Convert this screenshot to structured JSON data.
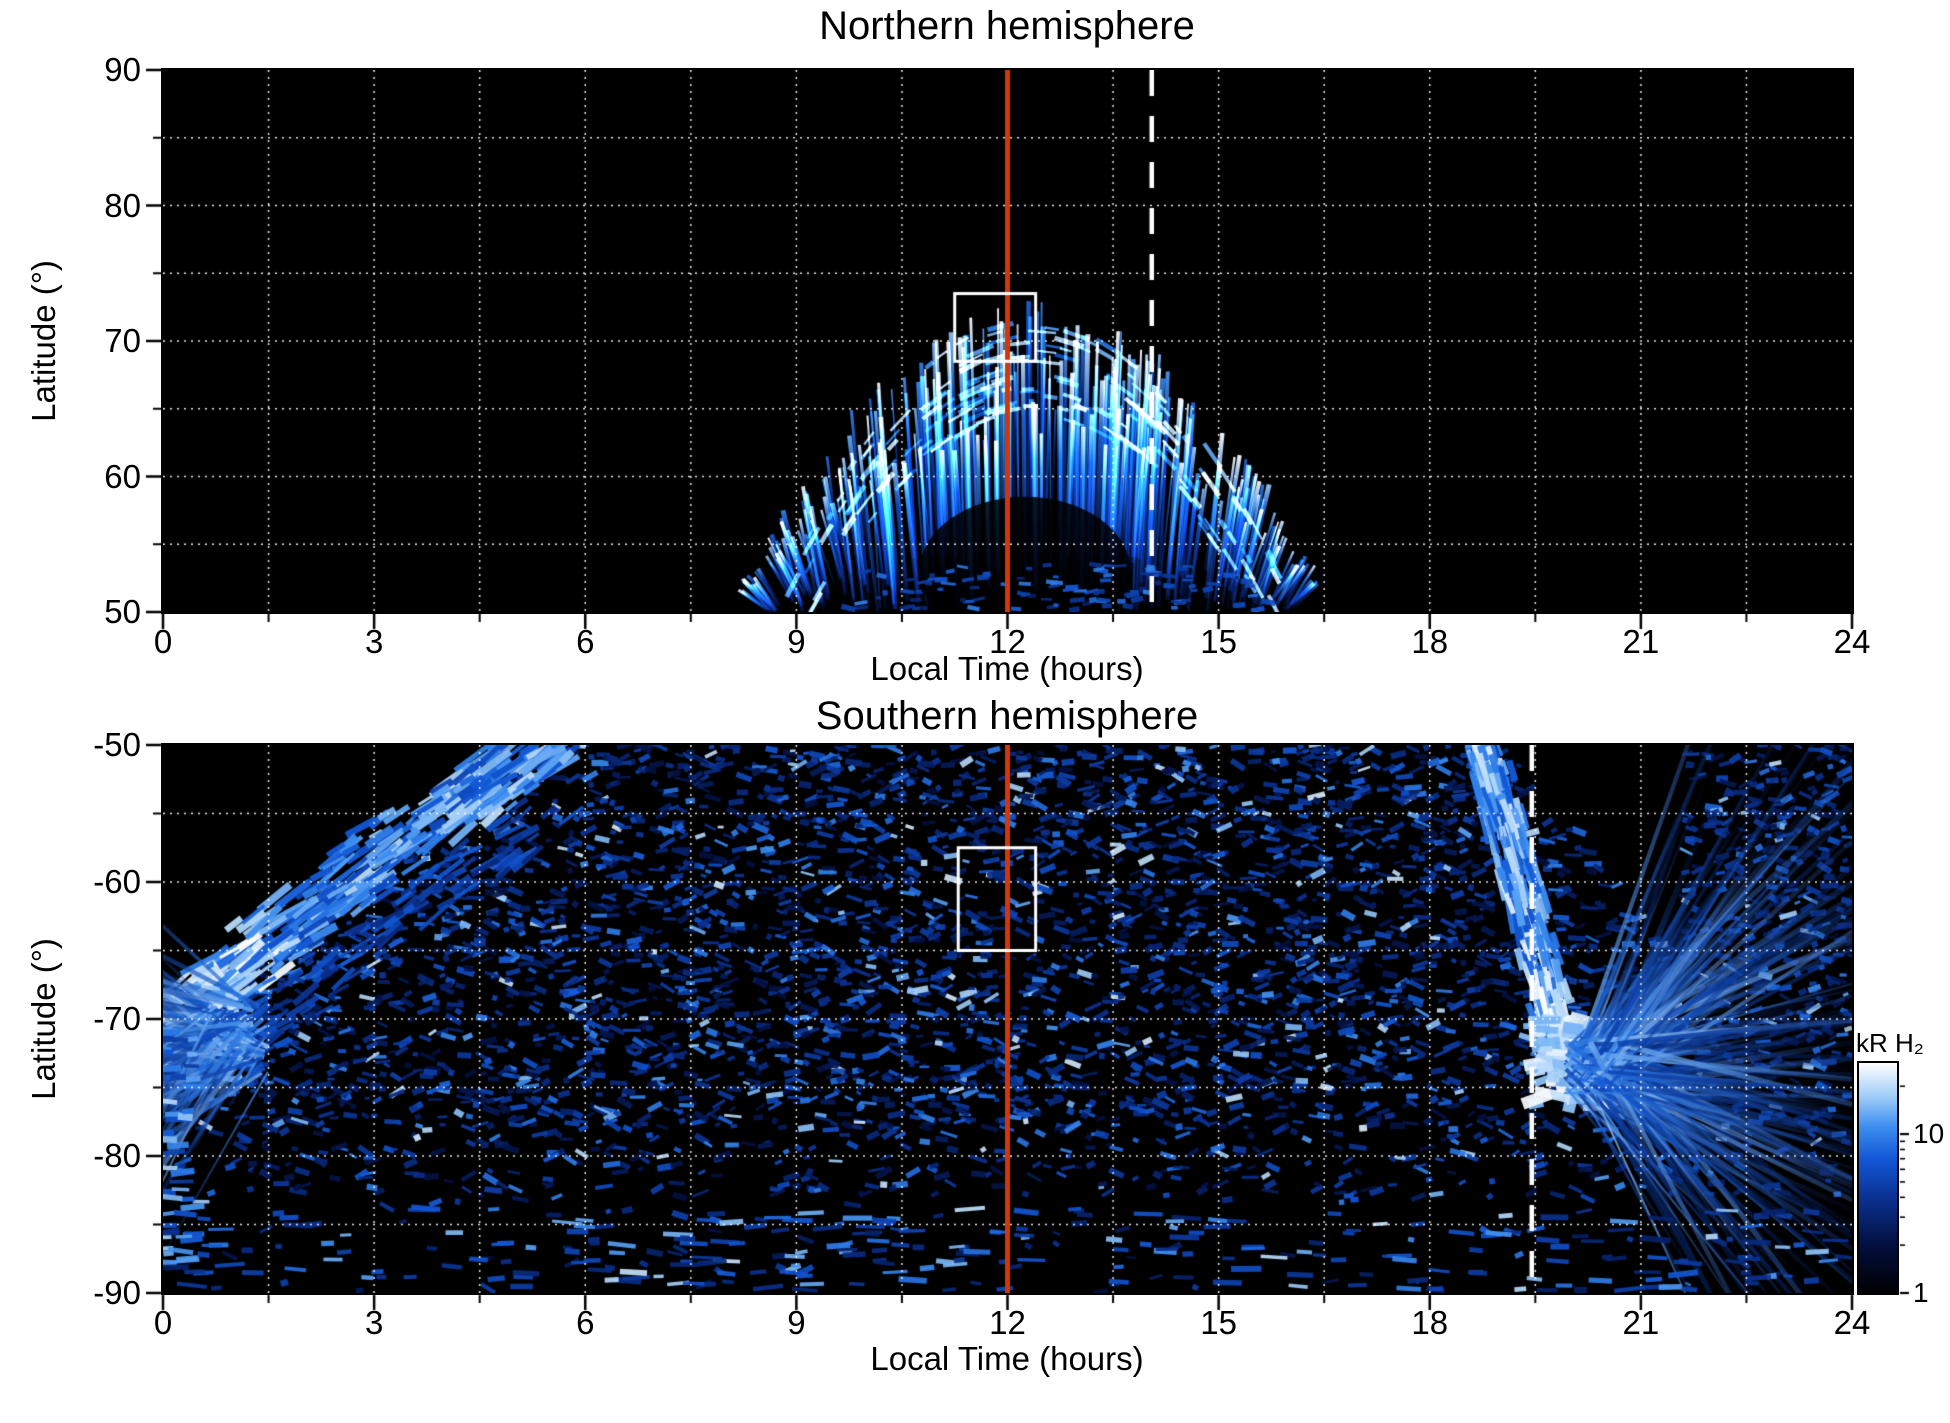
{
  "style": {
    "background": "#ffffff",
    "text_color": "#000000",
    "grid_color": "#ffffff",
    "noon_line_color": "#d23708",
    "dashed_line_color": "#ffffff",
    "box_color": "#ffffff",
    "colormap_stops": [
      [
        0,
        "#000002"
      ],
      [
        0.2,
        "#030f3d"
      ],
      [
        0.4,
        "#0a2f8c"
      ],
      [
        0.58,
        "#1257d6"
      ],
      [
        0.72,
        "#3b8df0"
      ],
      [
        0.85,
        "#9ccbf8"
      ],
      [
        1,
        "#ffffff"
      ]
    ]
  },
  "chart_data": [
    {
      "type": "heatmap",
      "hemisphere": "north",
      "title": "Northern hemisphere",
      "xlabel": "Local Time (hours)",
      "ylabel": "Latitude (°)",
      "xlim": [
        0,
        24
      ],
      "ylim": [
        50,
        90
      ],
      "x_ticks": [
        0,
        3,
        6,
        9,
        12,
        15,
        18,
        21,
        24
      ],
      "y_ticks": [
        90,
        80,
        70,
        60,
        50
      ],
      "x_grid_step": 1.5,
      "y_grid_step": 5,
      "grid": "dotted",
      "seed": 1234,
      "annotations": {
        "noon_line_x": 12,
        "dashed_line_x": 14.05,
        "highlight_box": {
          "lt0": 11.25,
          "lt1": 12.4,
          "lat0": 68.5,
          "lat1": 73.5
        }
      },
      "aurora_oval": {
        "description": "dayside auroral emission arc, black elsewhere",
        "lt_min": 8.4,
        "lt_max": 16.4,
        "lt_center": 12.35,
        "lat_base": 50,
        "lat_peak": 73,
        "bright_edge_lat_range": [
          60,
          72
        ],
        "dark_notch": {
          "lt": 12.25,
          "lat": 53.0,
          "lt_radius": 1.5,
          "lat_radius": 5.5
        },
        "peak_kR": 10,
        "typical_kR": 3
      }
    },
    {
      "type": "heatmap",
      "hemisphere": "south",
      "title": "Southern hemisphere",
      "xlabel": "Local Time (hours)",
      "ylabel": "Latitude (°)",
      "xlim": [
        0,
        24
      ],
      "ylim": [
        -90,
        -50
      ],
      "x_ticks": [
        0,
        3,
        6,
        9,
        12,
        15,
        18,
        21,
        24
      ],
      "y_ticks": [
        -50,
        -60,
        -70,
        -80,
        -90
      ],
      "x_grid_step": 1.5,
      "y_grid_step": 5,
      "grid": "dotted",
      "seed": 99,
      "annotations": {
        "noon_line_x": 12,
        "dashed_line_x": 19.45,
        "highlight_box": {
          "lt0": 11.3,
          "lt1": 12.4,
          "lat0": -65,
          "lat1": -57.5
        }
      },
      "features": {
        "dawn_arc": {
          "lt_top": 5.5,
          "lat_top": -50,
          "lt_end": 0,
          "lat_end": -70.5,
          "kR": 15
        },
        "dusk_arc": {
          "lt_top": 18.75,
          "lat_top": -50,
          "knot_lt": 19.95,
          "knot_lat": -73.5,
          "kR": 25
        },
        "diffuse_speckle": {
          "lat_min": -84,
          "lat_max": -50,
          "kR_range": [
            1,
            8
          ]
        },
        "polar_cap_sparse": {
          "lat_min": -90,
          "lat_max": -84
        }
      },
      "colorbar": {
        "label": "kR H₂",
        "tick_labels": [
          "10",
          "1"
        ],
        "tick_values": [
          10,
          1
        ],
        "min": 1,
        "max": 28,
        "scale": "log"
      }
    }
  ]
}
